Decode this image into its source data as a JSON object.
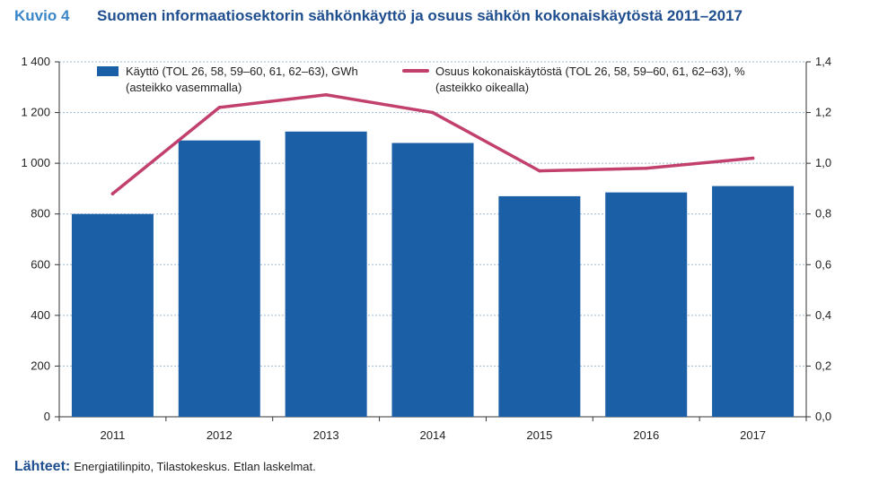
{
  "header": {
    "figure_label": "Kuvio 4",
    "title": "Suomen informaatiosektorin sähkönkäyttö ja osuus sähkön kokonaiskäytöstä 2011–2017"
  },
  "footer": {
    "source_label": "Lähteet:",
    "source_text": "Energiatilinpito, Tilastokeskus. Etlan laskelmat."
  },
  "chart_data": {
    "type": "bar",
    "categories": [
      "2011",
      "2012",
      "2013",
      "2014",
      "2015",
      "2016",
      "2017"
    ],
    "series": [
      {
        "name": "Käyttö (TOL 26, 58, 59–60, 61, 62–63), GWh",
        "name_line2": "(asteikko vasemmalla)",
        "type": "bar",
        "axis": "left",
        "color": "#1b5fa6",
        "values": [
          800,
          1090,
          1125,
          1080,
          870,
          885,
          910
        ]
      },
      {
        "name": "Osuus kokonaiskäytöstä (TOL 26, 58, 59–60, 61, 62–63), %",
        "name_line2": "(asteikko oikealla)",
        "type": "line",
        "axis": "right",
        "color": "#c2406e",
        "values": [
          0.88,
          1.22,
          1.27,
          1.2,
          0.97,
          0.98,
          1.02
        ]
      }
    ],
    "y_left": {
      "ylim": [
        0,
        1400
      ],
      "ticks": [
        0,
        200,
        400,
        600,
        800,
        1000,
        1200,
        1400
      ],
      "tick_labels": [
        "0",
        "200",
        "400",
        "600",
        "800",
        "1 000",
        "1 200",
        "1 400"
      ]
    },
    "y_right": {
      "ylim": [
        0,
        1.4
      ],
      "ticks": [
        0,
        0.2,
        0.4,
        0.6,
        0.8,
        1.0,
        1.2,
        1.4
      ],
      "tick_labels": [
        "0,0",
        "0,2",
        "0,4",
        "0,6",
        "0,8",
        "1,0",
        "1,2",
        "1,4"
      ]
    },
    "grid": true,
    "legend_position": "top"
  }
}
